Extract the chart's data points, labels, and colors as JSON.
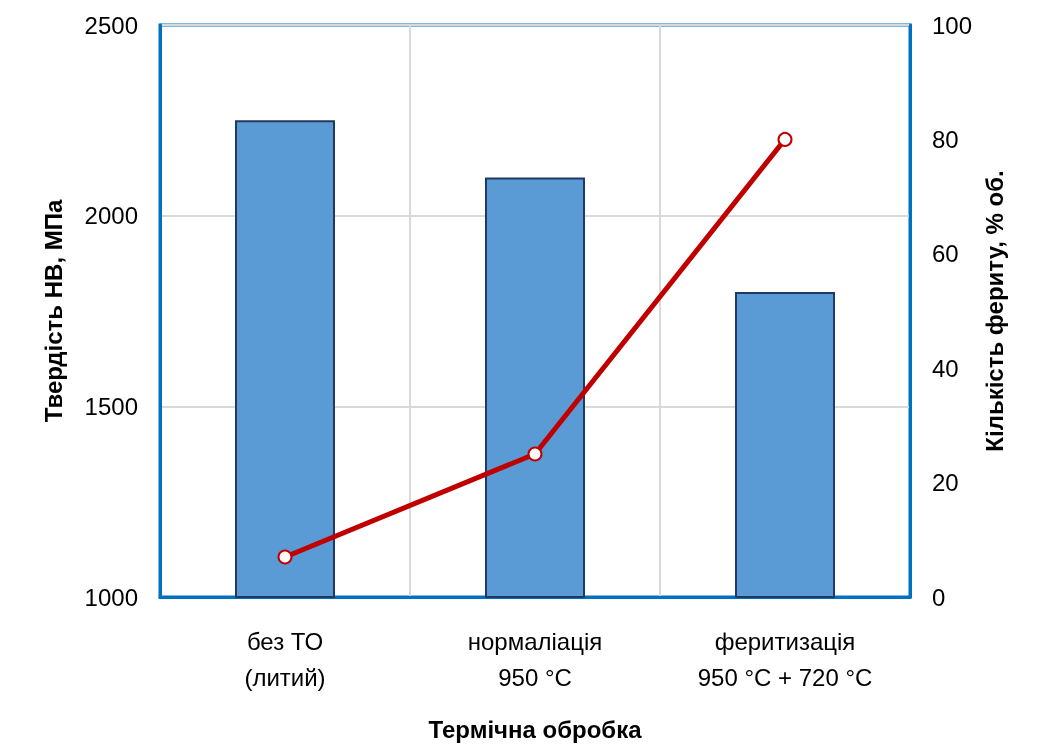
{
  "chart_data": {
    "type": "bar",
    "xlabel": "Термічна обробка",
    "ylabel": "Твердість НВ, МПа",
    "y2label": "Кількість фериту, % об.",
    "categories": [
      "без ТО\n(литий)",
      "нормаліація\n950 °C",
      "феритизація\n950 °C + 720 °C"
    ],
    "series": [
      {
        "color": "#5b9bd5",
        "values": [
          2250,
          2100,
          1800
        ]
      },
      {
        "type": "line",
        "axis": "y2",
        "color": "#c00000",
        "values": [
          7,
          25,
          80
        ]
      }
    ],
    "ylim": [
      1000,
      2500
    ],
    "yticks": [
      1000,
      1500,
      2000,
      2500
    ],
    "y2lim": [
      0,
      100
    ],
    "y2ticks": [
      0,
      20,
      40,
      60,
      80,
      100
    ],
    "grid": true,
    "marker": "circle",
    "line_style": "solid"
  }
}
